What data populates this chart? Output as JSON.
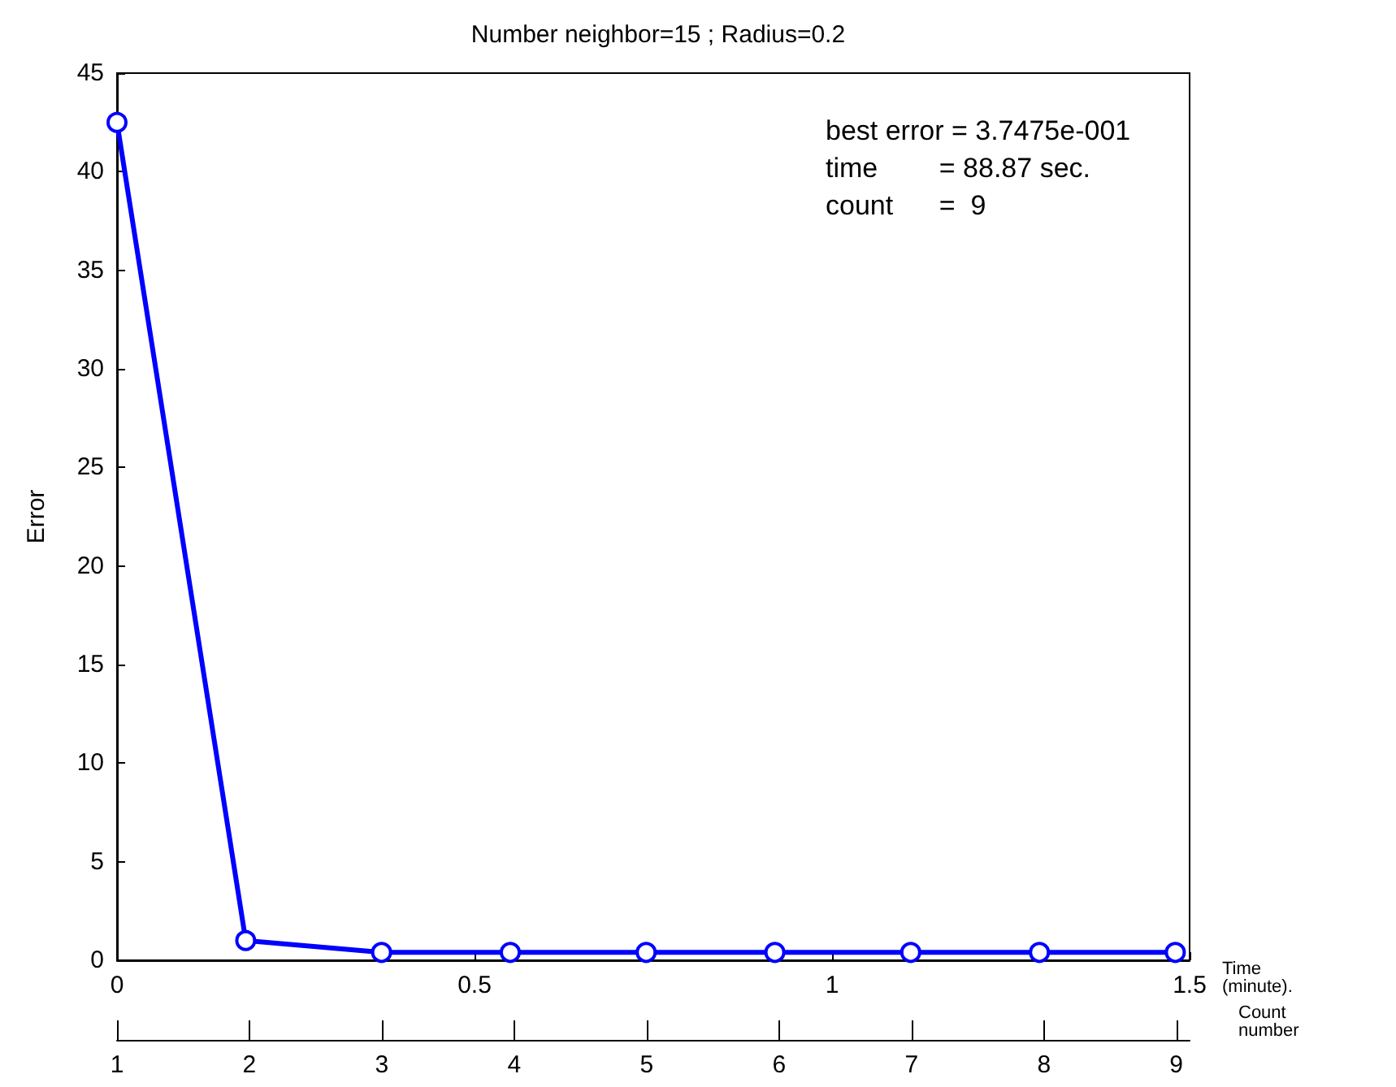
{
  "chart_data": {
    "type": "line",
    "title": "Number neighbor=15 ; Radius=0.2",
    "xlabel": "Time (minute).",
    "ylabel": "Error",
    "x2label": "Count number",
    "x": [
      0,
      0.18,
      0.37,
      0.55,
      0.74,
      0.92,
      1.11,
      1.29,
      1.48
    ],
    "series": [
      {
        "color": "#0000ff",
        "values": [
          42.5,
          1.0,
          0.4,
          0.4,
          0.4,
          0.4,
          0.4,
          0.4,
          0.4
        ]
      }
    ],
    "xlim": [
      0,
      1.5
    ],
    "xticks": [
      0,
      0.5,
      1,
      1.5
    ],
    "x2lim": [
      1,
      9.1
    ],
    "x2ticks": [
      1,
      2,
      3,
      4,
      5,
      6,
      7,
      8,
      9
    ],
    "ylim": [
      0,
      45
    ],
    "yticks": [
      0,
      5,
      10,
      15,
      20,
      25,
      30,
      35,
      40,
      45
    ],
    "annotations": [
      "best error = 3.7475e-001",
      "time        = 88.87 sec.",
      "count      =  9"
    ],
    "marker": "circle",
    "line_style": "solid"
  }
}
